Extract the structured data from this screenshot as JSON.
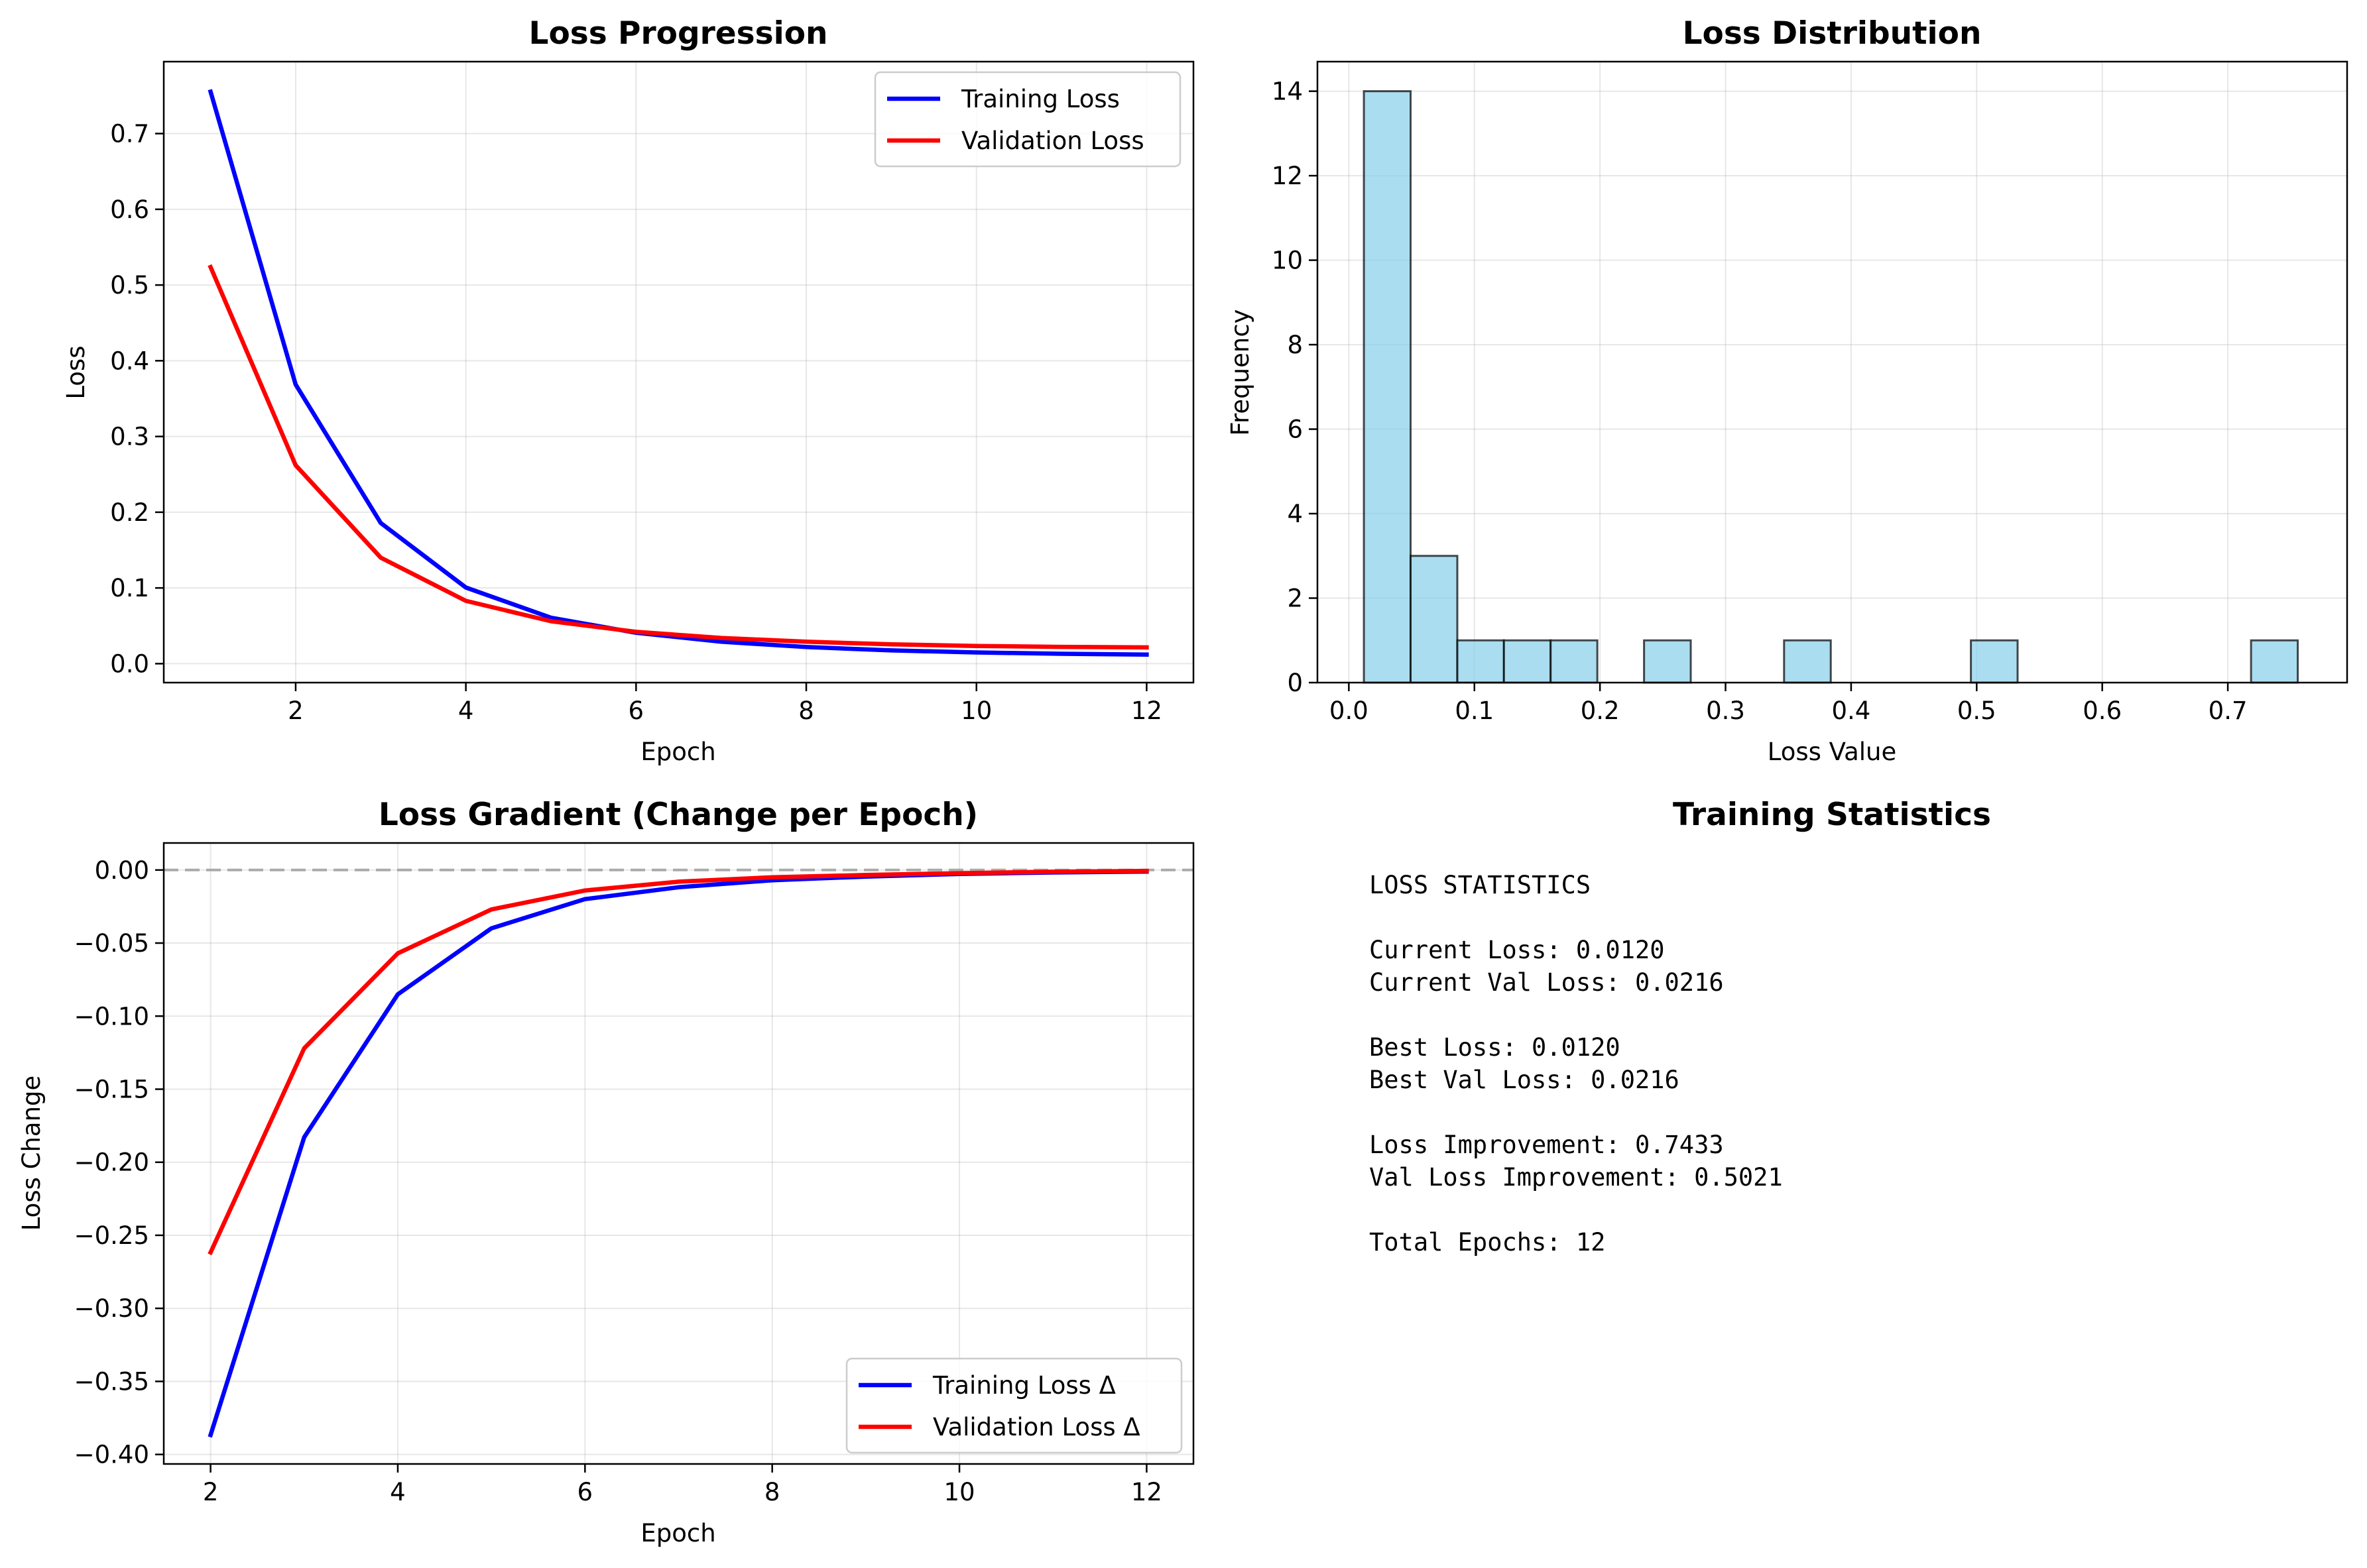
{
  "chart_data": [
    {
      "type": "line",
      "title": "Loss Progression",
      "xlabel": "Epoch",
      "ylabel": "Loss",
      "xlim": [
        0.45,
        12.55
      ],
      "ylim": [
        -0.025,
        0.795
      ],
      "xticks": [
        2,
        4,
        6,
        8,
        10,
        12
      ],
      "yticks": [
        0.0,
        0.1,
        0.2,
        0.3,
        0.4,
        0.5,
        0.6,
        0.7
      ],
      "ytick_labels": [
        "0.0",
        "0.1",
        "0.2",
        "0.3",
        "0.4",
        "0.5",
        "0.6",
        "0.7"
      ],
      "grid": true,
      "legend": "upper right",
      "x": [
        1,
        2,
        3,
        4,
        5,
        6,
        7,
        8,
        9,
        10,
        11,
        12
      ],
      "series": [
        {
          "name": "Training Loss",
          "color": "#0000ff",
          "values": [
            0.7553,
            0.3686,
            0.1857,
            0.1006,
            0.0607,
            0.0408,
            0.029,
            0.022,
            0.0175,
            0.0148,
            0.0131,
            0.012
          ]
        },
        {
          "name": "Validation Loss",
          "color": "#ff0000",
          "values": [
            0.5237,
            0.262,
            0.14,
            0.083,
            0.056,
            0.042,
            0.034,
            0.029,
            0.0256,
            0.0234,
            0.0222,
            0.0216
          ]
        }
      ]
    },
    {
      "type": "bar",
      "subtype": "histogram",
      "title": "Loss Distribution",
      "xlabel": "Loss Value",
      "ylabel": "Frequency",
      "xlim": [
        -0.025,
        0.795
      ],
      "ylim": [
        0,
        14.7
      ],
      "xticks": [
        0.0,
        0.1,
        0.2,
        0.3,
        0.4,
        0.5,
        0.6,
        0.7
      ],
      "xtick_labels": [
        "0.0",
        "0.1",
        "0.2",
        "0.3",
        "0.4",
        "0.5",
        "0.6",
        "0.7"
      ],
      "yticks": [
        0,
        2,
        4,
        6,
        8,
        10,
        12,
        14
      ],
      "grid": true,
      "color": "#87ceeb",
      "bin_edges": [
        0.012,
        0.0492,
        0.0864,
        0.1235,
        0.1607,
        0.1979,
        0.2351,
        0.2723,
        0.3095,
        0.3466,
        0.3838,
        0.421,
        0.4582,
        0.4954,
        0.5326,
        0.5697,
        0.6069,
        0.6441,
        0.6813,
        0.7185,
        0.7557
      ],
      "counts": [
        14,
        3,
        1,
        1,
        1,
        0,
        1,
        0,
        0,
        1,
        0,
        0,
        0,
        1,
        0,
        0,
        0,
        0,
        0,
        1
      ]
    },
    {
      "type": "line",
      "title": "Loss Gradient (Change per Epoch)",
      "xlabel": "Epoch",
      "ylabel": "Loss Change",
      "xlim": [
        1.5,
        12.5
      ],
      "ylim": [
        -0.4065,
        0.0185
      ],
      "xticks": [
        2,
        4,
        6,
        8,
        10,
        12
      ],
      "yticks": [
        0.0,
        -0.05,
        -0.1,
        -0.15,
        -0.2,
        -0.25,
        -0.3,
        -0.35,
        -0.4
      ],
      "ytick_labels": [
        "0.00",
        "−0.05",
        "−0.10",
        "−0.15",
        "−0.20",
        "−0.25",
        "−0.30",
        "−0.35",
        "−0.40"
      ],
      "grid": true,
      "legend": "lower right",
      "reference_line": {
        "y": 0,
        "style": "dashed",
        "color": "#999999"
      },
      "x": [
        2,
        3,
        4,
        5,
        6,
        7,
        8,
        9,
        10,
        11,
        12
      ],
      "series": [
        {
          "name": "Training Loss Δ",
          "color": "#0000ff",
          "values": [
            -0.3867,
            -0.1829,
            -0.0851,
            -0.0399,
            -0.0199,
            -0.0118,
            -0.007,
            -0.0045,
            -0.0027,
            -0.0017,
            -0.0011
          ]
        },
        {
          "name": "Validation Loss Δ",
          "color": "#ff0000",
          "values": [
            -0.2617,
            -0.122,
            -0.057,
            -0.027,
            -0.014,
            -0.008,
            -0.005,
            -0.0034,
            -0.0022,
            -0.0012,
            -0.0006
          ]
        }
      ]
    }
  ],
  "stats_panel": {
    "title": "Training Statistics",
    "lines": [
      "LOSS STATISTICS",
      "",
      "Current Loss: 0.0120",
      "Current Val Loss: 0.0216",
      "",
      "Best Loss: 0.0120",
      "Best Val Loss: 0.0216",
      "",
      "Loss Improvement: 0.7433",
      "Val Loss Improvement: 0.5021",
      "",
      "Total Epochs: 12"
    ]
  }
}
